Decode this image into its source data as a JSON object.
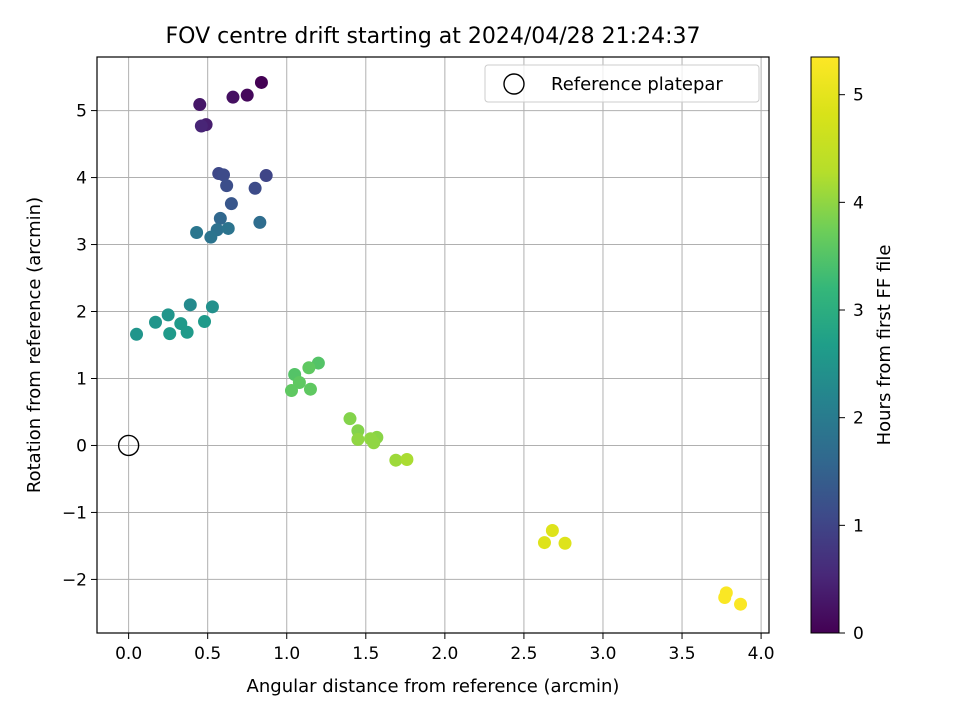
{
  "chart_data": {
    "type": "scatter",
    "title": "FOV centre drift starting at 2024/04/28 21:24:37",
    "xlabel": "Angular distance from reference (arcmin)",
    "ylabel": "Rotation from reference (arcmin)",
    "xlim": [
      -0.2,
      4.05
    ],
    "ylim": [
      -2.8,
      5.8
    ],
    "xticks": [
      0.0,
      0.5,
      1.0,
      1.5,
      2.0,
      2.5,
      3.0,
      3.5,
      4.0
    ],
    "xtick_labels": [
      "0.0",
      "0.5",
      "1.0",
      "1.5",
      "2.0",
      "2.5",
      "3.0",
      "3.5",
      "4.0"
    ],
    "yticks": [
      -2,
      -1,
      0,
      1,
      2,
      3,
      4,
      5
    ],
    "ytick_labels": [
      "−2",
      "−1",
      "0",
      "1",
      "2",
      "3",
      "4",
      "5"
    ],
    "grid": true,
    "legend": {
      "position": "top-right",
      "label": "Reference platepar"
    },
    "reference_point": {
      "x": 0.0,
      "y": 0.0
    },
    "colorbar": {
      "label": "Hours from first FF file",
      "range": [
        0,
        5.35
      ],
      "ticks": [
        0,
        1,
        2,
        3,
        4,
        5
      ],
      "tick_labels": [
        "0",
        "1",
        "2",
        "3",
        "4",
        "5"
      ],
      "colormap": "viridis"
    },
    "points": [
      {
        "x": 0.84,
        "y": 5.42,
        "h": 0.0
      },
      {
        "x": 0.75,
        "y": 5.23,
        "h": 0.1
      },
      {
        "x": 0.66,
        "y": 5.2,
        "h": 0.2
      },
      {
        "x": 0.45,
        "y": 5.09,
        "h": 0.3
      },
      {
        "x": 0.49,
        "y": 4.79,
        "h": 0.4
      },
      {
        "x": 0.46,
        "y": 4.77,
        "h": 0.5
      },
      {
        "x": 0.87,
        "y": 4.03,
        "h": 1.0
      },
      {
        "x": 0.57,
        "y": 4.06,
        "h": 1.05
      },
      {
        "x": 0.6,
        "y": 4.04,
        "h": 1.1
      },
      {
        "x": 0.8,
        "y": 3.84,
        "h": 1.1
      },
      {
        "x": 0.62,
        "y": 3.88,
        "h": 1.15
      },
      {
        "x": 0.65,
        "y": 3.61,
        "h": 1.3
      },
      {
        "x": 0.58,
        "y": 3.39,
        "h": 1.6
      },
      {
        "x": 0.83,
        "y": 3.33,
        "h": 1.7
      },
      {
        "x": 0.56,
        "y": 3.22,
        "h": 1.8
      },
      {
        "x": 0.63,
        "y": 3.24,
        "h": 1.85
      },
      {
        "x": 0.43,
        "y": 3.18,
        "h": 1.9
      },
      {
        "x": 0.52,
        "y": 3.11,
        "h": 1.85
      },
      {
        "x": 0.39,
        "y": 2.1,
        "h": 2.3
      },
      {
        "x": 0.53,
        "y": 2.07,
        "h": 2.4
      },
      {
        "x": 0.25,
        "y": 1.95,
        "h": 2.5
      },
      {
        "x": 0.17,
        "y": 1.84,
        "h": 2.5
      },
      {
        "x": 0.48,
        "y": 1.85,
        "h": 2.6
      },
      {
        "x": 0.33,
        "y": 1.82,
        "h": 2.6
      },
      {
        "x": 0.26,
        "y": 1.67,
        "h": 2.6
      },
      {
        "x": 0.37,
        "y": 1.69,
        "h": 2.6
      },
      {
        "x": 0.05,
        "y": 1.66,
        "h": 2.5
      },
      {
        "x": 1.2,
        "y": 1.23,
        "h": 3.5
      },
      {
        "x": 1.14,
        "y": 1.16,
        "h": 3.6
      },
      {
        "x": 1.05,
        "y": 1.06,
        "h": 3.5
      },
      {
        "x": 1.08,
        "y": 0.94,
        "h": 3.6
      },
      {
        "x": 1.15,
        "y": 0.84,
        "h": 3.6
      },
      {
        "x": 1.03,
        "y": 0.82,
        "h": 3.6
      },
      {
        "x": 1.4,
        "y": 0.4,
        "h": 3.9
      },
      {
        "x": 1.45,
        "y": 0.22,
        "h": 3.9
      },
      {
        "x": 1.57,
        "y": 0.12,
        "h": 3.95
      },
      {
        "x": 1.53,
        "y": 0.1,
        "h": 4.0
      },
      {
        "x": 1.45,
        "y": 0.09,
        "h": 4.0
      },
      {
        "x": 1.55,
        "y": 0.04,
        "h": 4.0
      },
      {
        "x": 1.69,
        "y": -0.22,
        "h": 4.1
      },
      {
        "x": 1.76,
        "y": -0.21,
        "h": 4.2
      },
      {
        "x": 2.68,
        "y": -1.27,
        "h": 4.9
      },
      {
        "x": 2.63,
        "y": -1.45,
        "h": 4.9
      },
      {
        "x": 2.76,
        "y": -1.46,
        "h": 4.9
      },
      {
        "x": 3.78,
        "y": -2.2,
        "h": 5.3
      },
      {
        "x": 3.77,
        "y": -2.27,
        "h": 5.3
      },
      {
        "x": 3.87,
        "y": -2.37,
        "h": 5.3
      }
    ]
  }
}
